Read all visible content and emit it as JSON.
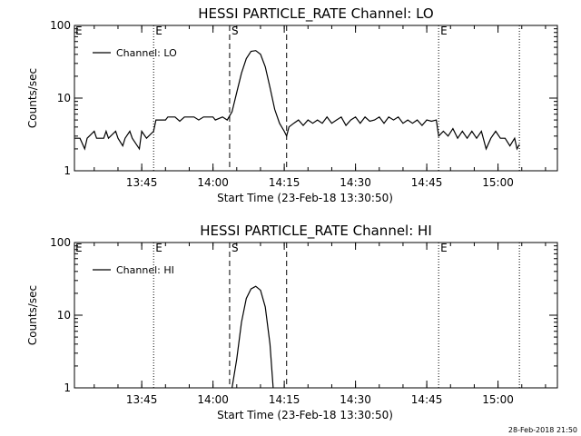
{
  "footer": {
    "timestamp": "28-Feb-2018 21:50"
  },
  "chart_data": [
    {
      "type": "line",
      "title": "HESSI PARTICLE_RATE Channel: LO",
      "xlabel": "Start Time (23-Feb-18 13:30:50)",
      "ylabel": "Counts/sec",
      "yscale": "log",
      "ylim": [
        1,
        100
      ],
      "y_ticks": [
        "1",
        "10",
        "100"
      ],
      "xlim": [
        "13:30:50",
        "15:12:30"
      ],
      "x_ticks": [
        "13:45",
        "14:00",
        "14:15",
        "14:30",
        "14:45",
        "15:00"
      ],
      "legend": {
        "position": "top-left",
        "entries": [
          "Channel: LO"
        ]
      },
      "vlines": [
        {
          "time": "13:47:30",
          "style": "dotted",
          "label": "E"
        },
        {
          "time": "14:03:30",
          "style": "dashed",
          "label": "S"
        },
        {
          "time": "14:15:30",
          "style": "dashed",
          "label": ""
        },
        {
          "time": "14:47:30",
          "style": "dotted",
          "label": "E"
        },
        {
          "time": "15:04:30",
          "style": "dotted",
          "label": ""
        }
      ],
      "edge_marker": {
        "time": "13:30:50",
        "label": "E"
      },
      "series": [
        {
          "name": "Channel: LO",
          "points": [
            [
              "13:30:50",
              2.8
            ],
            [
              "13:32:00",
              2.8
            ],
            [
              "13:33:00",
              2.0
            ],
            [
              "13:33:30",
              2.8
            ],
            [
              "13:35:00",
              3.5
            ],
            [
              "13:35:30",
              2.8
            ],
            [
              "13:37:00",
              2.8
            ],
            [
              "13:37:30",
              3.5
            ],
            [
              "13:38:00",
              2.8
            ],
            [
              "13:39:30",
              3.5
            ],
            [
              "13:40:00",
              2.8
            ],
            [
              "13:41:00",
              2.2
            ],
            [
              "13:41:30",
              2.8
            ],
            [
              "13:42:30",
              3.5
            ],
            [
              "13:43:00",
              2.8
            ],
            [
              "13:44:30",
              2.0
            ],
            [
              "13:45:00",
              3.5
            ],
            [
              "13:46:00",
              2.8
            ],
            [
              "13:47:30",
              3.5
            ],
            [
              "13:48:00",
              5.0
            ],
            [
              "13:50:00",
              5.0
            ],
            [
              "13:50:30",
              5.5
            ],
            [
              "13:52:00",
              5.5
            ],
            [
              "13:53:00",
              4.8
            ],
            [
              "13:54:00",
              5.5
            ],
            [
              "13:56:00",
              5.5
            ],
            [
              "13:57:00",
              5.0
            ],
            [
              "13:58:00",
              5.5
            ],
            [
              "14:00:00",
              5.5
            ],
            [
              "14:00:30",
              5.0
            ],
            [
              "14:02:00",
              5.5
            ],
            [
              "14:03:00",
              5.0
            ],
            [
              "14:04:00",
              6.5
            ],
            [
              "14:05:00",
              12.0
            ],
            [
              "14:06:00",
              22.0
            ],
            [
              "14:07:00",
              35.0
            ],
            [
              "14:08:00",
              44.0
            ],
            [
              "14:09:00",
              45.0
            ],
            [
              "14:10:00",
              40.0
            ],
            [
              "14:11:00",
              27.0
            ],
            [
              "14:12:00",
              14.0
            ],
            [
              "14:13:00",
              7.0
            ],
            [
              "14:14:00",
              4.5
            ],
            [
              "14:15:00",
              3.5
            ],
            [
              "14:15:30",
              3.0
            ],
            [
              "14:16:00",
              4.0
            ],
            [
              "14:17:00",
              4.5
            ],
            [
              "14:18:00",
              5.0
            ],
            [
              "14:19:00",
              4.2
            ],
            [
              "14:20:00",
              5.0
            ],
            [
              "14:21:00",
              4.5
            ],
            [
              "14:22:00",
              5.0
            ],
            [
              "14:23:00",
              4.5
            ],
            [
              "14:24:00",
              5.5
            ],
            [
              "14:25:00",
              4.5
            ],
            [
              "14:26:00",
              5.0
            ],
            [
              "14:27:00",
              5.5
            ],
            [
              "14:28:00",
              4.2
            ],
            [
              "14:29:00",
              5.0
            ],
            [
              "14:30:00",
              5.5
            ],
            [
              "14:31:00",
              4.5
            ],
            [
              "14:32:00",
              5.5
            ],
            [
              "14:33:00",
              4.8
            ],
            [
              "14:34:00",
              5.0
            ],
            [
              "14:35:00",
              5.5
            ],
            [
              "14:36:00",
              4.5
            ],
            [
              "14:37:00",
              5.5
            ],
            [
              "14:38:00",
              5.0
            ],
            [
              "14:39:00",
              5.5
            ],
            [
              "14:40:00",
              4.5
            ],
            [
              "14:41:00",
              5.0
            ],
            [
              "14:42:00",
              4.5
            ],
            [
              "14:43:00",
              5.0
            ],
            [
              "14:44:00",
              4.2
            ],
            [
              "14:45:00",
              5.0
            ],
            [
              "14:46:00",
              4.8
            ],
            [
              "14:47:00",
              5.0
            ],
            [
              "14:47:30",
              3.0
            ],
            [
              "14:48:30",
              3.5
            ],
            [
              "14:49:30",
              3.0
            ],
            [
              "14:50:30",
              3.8
            ],
            [
              "14:51:30",
              2.8
            ],
            [
              "14:52:30",
              3.5
            ],
            [
              "14:53:30",
              2.8
            ],
            [
              "14:54:30",
              3.5
            ],
            [
              "14:55:30",
              2.8
            ],
            [
              "14:56:30",
              3.5
            ],
            [
              "14:57:30",
              2.0
            ],
            [
              "14:58:30",
              2.8
            ],
            [
              "14:59:30",
              3.5
            ],
            [
              "15:00:30",
              2.8
            ],
            [
              "15:01:30",
              2.8
            ],
            [
              "15:02:30",
              2.2
            ],
            [
              "15:03:30",
              2.8
            ],
            [
              "15:04:00",
              2.0
            ],
            [
              "15:04:30",
              2.3
            ]
          ]
        }
      ]
    },
    {
      "type": "line",
      "title": "HESSI PARTICLE_RATE Channel: HI",
      "xlabel": "Start Time (23-Feb-18 13:30:50)",
      "ylabel": "Counts/sec",
      "yscale": "log",
      "ylim": [
        1,
        100
      ],
      "y_ticks": [
        "1",
        "10",
        "100"
      ],
      "xlim": [
        "13:30:50",
        "15:12:30"
      ],
      "x_ticks": [
        "13:45",
        "14:00",
        "14:15",
        "14:30",
        "14:45",
        "15:00"
      ],
      "legend": {
        "position": "top-left",
        "entries": [
          "Channel: HI"
        ]
      },
      "vlines": [
        {
          "time": "13:47:30",
          "style": "dotted",
          "label": "E"
        },
        {
          "time": "14:03:30",
          "style": "dashed",
          "label": "S"
        },
        {
          "time": "14:15:30",
          "style": "dashed",
          "label": ""
        },
        {
          "time": "14:47:30",
          "style": "dotted",
          "label": "E"
        },
        {
          "time": "15:04:30",
          "style": "dotted",
          "label": ""
        }
      ],
      "edge_marker": {
        "time": "13:30:50",
        "label": "E"
      },
      "series": [
        {
          "name": "Channel: HI",
          "points": [
            [
              "14:04:00",
              1.0
            ],
            [
              "14:05:00",
              2.5
            ],
            [
              "14:06:00",
              8.0
            ],
            [
              "14:07:00",
              17.0
            ],
            [
              "14:08:00",
              23.0
            ],
            [
              "14:09:00",
              25.0
            ],
            [
              "14:10:00",
              22.0
            ],
            [
              "14:11:00",
              13.0
            ],
            [
              "14:12:00",
              4.0
            ],
            [
              "14:12:40",
              1.0
            ]
          ]
        }
      ]
    }
  ]
}
